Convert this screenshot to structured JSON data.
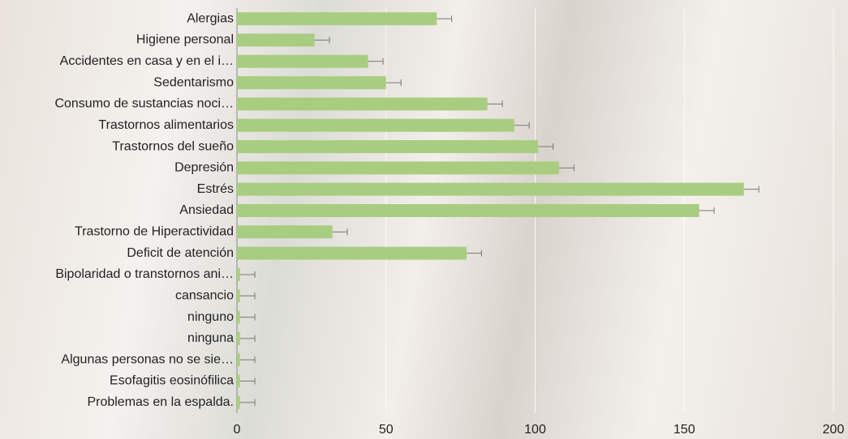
{
  "chart_data": {
    "type": "bar",
    "orientation": "horizontal",
    "categories": [
      "Alergias",
      "Higiene personal",
      "Accidentes en casa y en el i…",
      "Sedentarismo",
      "Consumo de sustancias noci…",
      "Trastornos alimentarios",
      "Trastornos del sueño",
      "Depresión",
      "Estrés",
      "Ansiedad",
      "Trastorno de Hiperactividad",
      "Deficit de atención",
      "Bipolaridad o transtornos ani…",
      "cansancio",
      "ninguno",
      "ninguna",
      "Algunas personas no se sie…",
      "Esofagitis eosinófilica",
      "Problemas en la espalda."
    ],
    "values": [
      67,
      26,
      44,
      50,
      84,
      93,
      101,
      108,
      170,
      155,
      32,
      77,
      1,
      1,
      1,
      1,
      1,
      1,
      1
    ],
    "errors": [
      5,
      5,
      5,
      5,
      5,
      5,
      5,
      5,
      5,
      5,
      5,
      5,
      5,
      5,
      5,
      5,
      5,
      5,
      5
    ],
    "color": "#a9cd80",
    "xlim": [
      0,
      200
    ],
    "xticks": [
      0,
      50,
      100,
      150,
      200
    ],
    "grid": true
  }
}
